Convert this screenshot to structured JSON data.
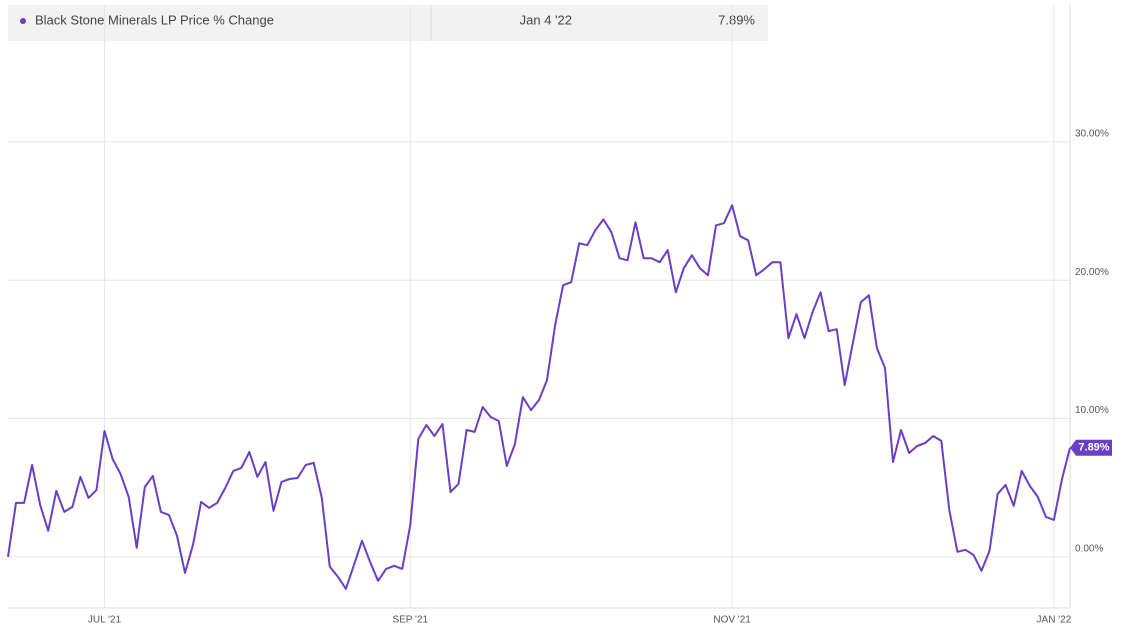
{
  "chart_data": {
    "type": "line",
    "series": [
      {
        "name": "Black Stone Minerals LP Price % Change",
        "color": "#6a3fc8",
        "values": [
          0,
          3.9,
          3.9,
          6.64,
          3.75,
          1.88,
          4.77,
          3.25,
          3.61,
          5.78,
          4.26,
          4.84,
          9.1,
          7.08,
          5.99,
          4.33,
          0.65,
          5.05,
          5.85,
          3.25,
          3.03,
          1.52,
          -1.16,
          0.87,
          3.97,
          3.54,
          3.9,
          4.98,
          6.21,
          6.43,
          7.58,
          5.78,
          6.86,
          3.32,
          5.42,
          5.63,
          5.7,
          6.64,
          6.79,
          4.26,
          -0.72,
          -1.44,
          -2.31,
          -0.58,
          1.16,
          -0.36,
          -1.73,
          -0.87,
          -0.65,
          -0.87,
          2.31,
          8.52,
          9.53,
          8.74,
          9.6,
          4.69,
          5.27,
          9.17,
          9.03,
          10.83,
          10.11,
          9.82,
          6.57,
          8.16,
          11.55,
          10.61,
          11.34,
          12.78,
          16.75,
          19.64,
          19.86,
          22.67,
          22.53,
          23.61,
          24.4,
          23.47,
          21.59,
          21.44,
          24.19,
          21.59,
          21.59,
          21.3,
          22.17,
          19.13,
          20.87,
          21.81,
          20.87,
          20.36,
          23.97,
          24.12,
          25.42,
          23.18,
          22.89,
          20.36,
          20.79,
          21.3,
          21.3,
          15.81,
          17.55,
          15.81,
          17.69,
          19.13,
          16.32,
          16.46,
          12.42,
          15.45,
          18.41,
          18.92,
          15.09,
          13.65,
          6.86,
          9.17,
          7.51,
          8.01,
          8.23,
          8.74,
          8.38,
          3.39,
          0.36,
          0.51,
          0.14,
          -1.01,
          0.43,
          4.55,
          5.2,
          3.68,
          6.21,
          5.13,
          4.33,
          2.89,
          2.67,
          5.63,
          7.89
        ]
      }
    ],
    "categories": [
      null,
      null,
      null,
      null,
      null,
      null,
      null,
      null,
      null,
      null,
      null,
      null,
      "JUL '21",
      null,
      null,
      null,
      null,
      null,
      null,
      null,
      null,
      null,
      null,
      null,
      null,
      null,
      null,
      null,
      null,
      null,
      null,
      null,
      null,
      null,
      null,
      null,
      null,
      null,
      null,
      null,
      null,
      null,
      null,
      null,
      null,
      null,
      null,
      null,
      null,
      null,
      "SEP '21",
      null,
      null,
      null,
      null,
      null,
      null,
      null,
      null,
      null,
      null,
      null,
      null,
      null,
      null,
      null,
      null,
      null,
      null,
      null,
      null,
      null,
      null,
      null,
      null,
      null,
      null,
      null,
      null,
      null,
      null,
      null,
      null,
      null,
      null,
      null,
      null,
      null,
      null,
      null,
      "NOV '21",
      null,
      null,
      null,
      null,
      null,
      null,
      null,
      null,
      null,
      null,
      null,
      null,
      null,
      null,
      null,
      null,
      null,
      null,
      null,
      null,
      null,
      null,
      null,
      null,
      null,
      null,
      null,
      null,
      null,
      null,
      null,
      null,
      null,
      null,
      null,
      null,
      null,
      null,
      null,
      "JAN '22",
      null,
      null
    ],
    "latest": {
      "date": "Jan 4 '22",
      "value": 7.89,
      "label": "7.89%"
    },
    "ylim": [
      -3.7,
      39.9
    ],
    "yticks": [
      {
        "value": 0,
        "label": "0.00%"
      },
      {
        "value": 10,
        "label": "10.00%"
      },
      {
        "value": 20,
        "label": "20.00%"
      },
      {
        "value": 30,
        "label": "30.00%"
      }
    ],
    "grid": true
  }
}
